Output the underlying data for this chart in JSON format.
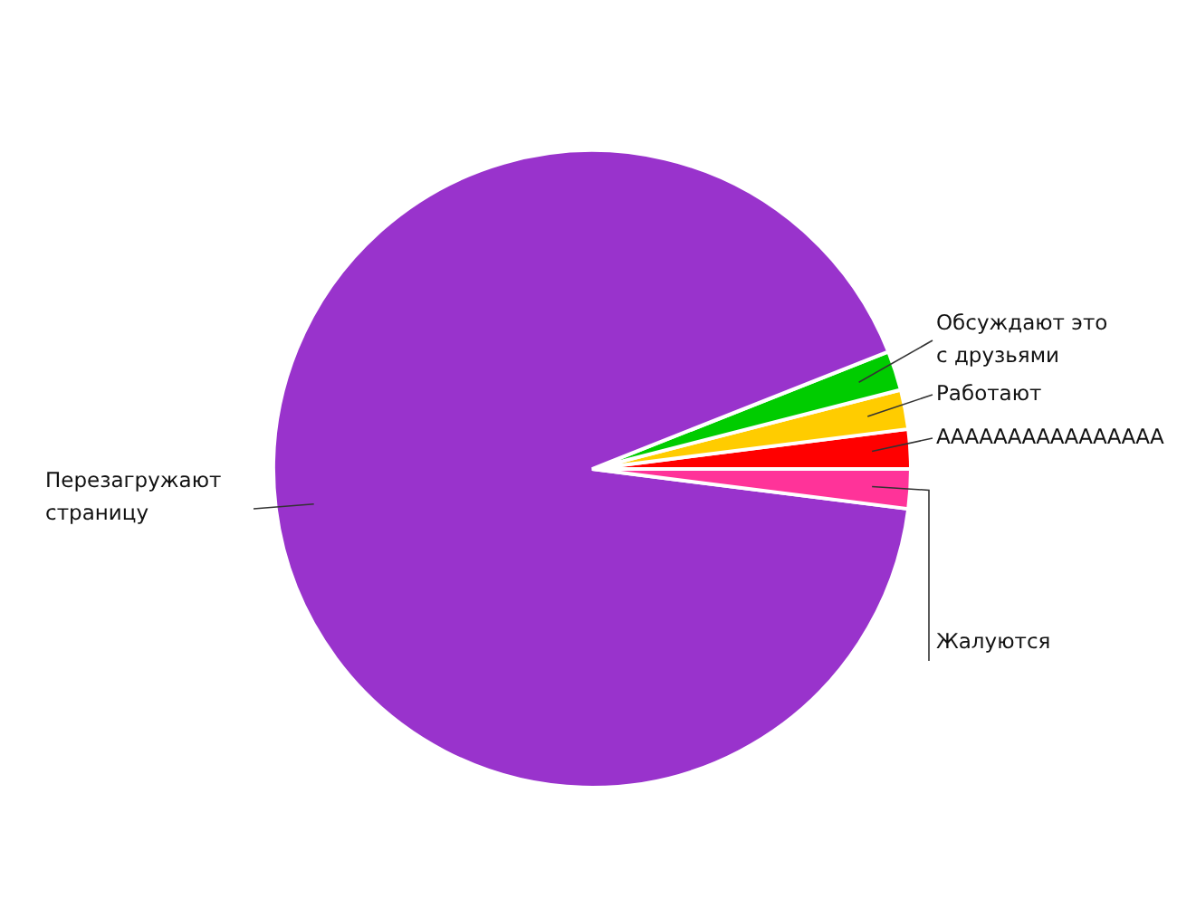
{
  "chart_data": {
    "type": "pie",
    "categories": [
      "АААААААААААААААА",
      "Работают",
      "Обсуждают это\nс друзьями",
      "Перезагружают\nстраницу",
      "Жалуются"
    ],
    "values": [
      2,
      2,
      2,
      92,
      2
    ],
    "colors": [
      "#ff0000",
      "#ffcc00",
      "#00cc00",
      "#9933cc",
      "#ff3399"
    ]
  }
}
